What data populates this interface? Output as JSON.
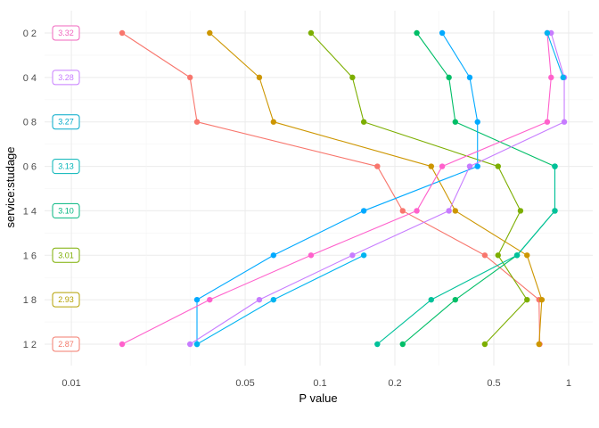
{
  "chart_data": {
    "type": "dumbbell",
    "xlabel": "P value",
    "ylabel": "service:studage",
    "x_scale": "log10",
    "xlim": [
      0.0078,
      1.25
    ],
    "x_ticks": [
      {
        "value": 0.01,
        "label": "0.01"
      },
      {
        "value": 0.05,
        "label": "0.05"
      },
      {
        "value": 0.1,
        "label": "0.1"
      },
      {
        "value": 0.2,
        "label": "0.2"
      },
      {
        "value": 0.5,
        "label": "0.5"
      },
      {
        "value": 1,
        "label": "1"
      }
    ],
    "x_minor_ticks": [
      0.02,
      0.03,
      0.3
    ],
    "grid": true,
    "legend": "none",
    "categories": [
      "0 2",
      "0 4",
      "0 8",
      "0 6",
      "1 4",
      "1 6",
      "1 8",
      "1 2"
    ],
    "row_labels": [
      "3.32",
      "3.28",
      "3.27",
      "3.13",
      "3.10",
      "3.01",
      "2.93",
      "2.87"
    ],
    "row_colors": [
      "#F064BE",
      "#C77CFF",
      "#00A9C9",
      "#00B3B6",
      "#00B67F",
      "#7CAE00",
      "#B4A000",
      "#F37B6D"
    ],
    "series": [
      {
        "color": "#F8766D",
        "values": [
          0.016,
          0.03,
          0.032,
          0.17,
          0.215,
          0.46,
          0.76,
          0.765
        ]
      },
      {
        "color": "#CD9600",
        "values": [
          0.036,
          0.057,
          0.065,
          0.28,
          0.35,
          0.68,
          0.78,
          0.76
        ]
      },
      {
        "color": "#7CAE00",
        "values": [
          0.092,
          0.135,
          0.15,
          0.52,
          0.64,
          0.52,
          0.68,
          0.46
        ]
      },
      {
        "color": "#00BE67",
        "values": [
          0.245,
          0.33,
          0.35,
          0.88,
          0.88,
          0.62,
          0.35,
          0.215
        ]
      },
      {
        "color": "#00A9FF",
        "values": [
          0.31,
          0.4,
          0.43,
          0.43,
          0.15,
          0.065,
          0.032,
          0.032
        ]
      },
      {
        "color": "#C77CFF",
        "values": [
          0.85,
          0.96,
          0.96,
          0.4,
          0.33,
          0.135,
          0.057,
          0.03
        ]
      },
      {
        "color": "#FF61CC",
        "values": [
          0.82,
          0.85,
          0.82,
          0.31,
          0.245,
          0.092,
          0.036,
          0.016
        ]
      },
      {
        "color": "#00B4F0",
        "values": [
          0.82,
          0.95,
          null,
          null,
          null,
          0.15,
          0.065,
          0.032
        ]
      },
      {
        "color": "#00C19A",
        "values": [
          null,
          null,
          null,
          0.88,
          0.88,
          0.62,
          0.28,
          0.17
        ]
      }
    ]
  }
}
